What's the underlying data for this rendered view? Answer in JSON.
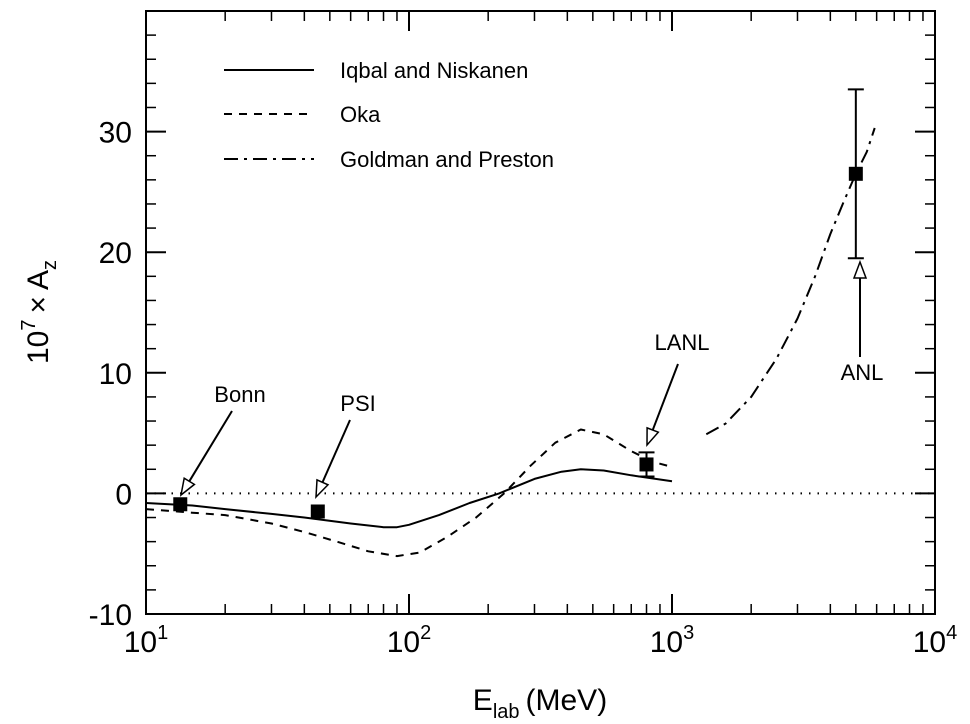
{
  "chart_data": {
    "type": "line",
    "title": "",
    "xscale": "log",
    "xlim": [
      10,
      10000
    ],
    "ylim": [
      -10,
      40
    ],
    "xlabel": {
      "main": "E",
      "sub": "lab",
      "unit": "(MeV)"
    },
    "ylabel": {
      "base": "10",
      "exp": "7",
      "times": "×",
      "var": "A",
      "sub": "z"
    },
    "x_ticks": [
      {
        "value": 10,
        "base": "10",
        "exp": "1"
      },
      {
        "value": 100,
        "base": "10",
        "exp": "2"
      },
      {
        "value": 1000,
        "base": "10",
        "exp": "3"
      },
      {
        "value": 10000,
        "base": "10",
        "exp": "4"
      }
    ],
    "y_ticks": [
      {
        "value": -10,
        "label": "-10"
      },
      {
        "value": 0,
        "label": "0"
      },
      {
        "value": 10,
        "label": "10"
      },
      {
        "value": 20,
        "label": "20"
      },
      {
        "value": 30,
        "label": "30"
      }
    ],
    "zero_line": true,
    "grid": false,
    "legend_position": "top-left",
    "series": [
      {
        "name": "Iqbal and Niskanen",
        "style": "solid",
        "points": [
          [
            10,
            -0.8
          ],
          [
            15,
            -1.0
          ],
          [
            20,
            -1.3
          ],
          [
            30,
            -1.7
          ],
          [
            40,
            -2.0
          ],
          [
            60,
            -2.5
          ],
          [
            80,
            -2.8
          ],
          [
            90,
            -2.8
          ],
          [
            100,
            -2.6
          ],
          [
            130,
            -1.8
          ],
          [
            170,
            -0.8
          ],
          [
            220,
            0.0
          ],
          [
            300,
            1.2
          ],
          [
            380,
            1.8
          ],
          [
            450,
            2.0
          ],
          [
            550,
            1.9
          ],
          [
            700,
            1.5
          ],
          [
            1000,
            1.0
          ]
        ]
      },
      {
        "name": "Oka",
        "style": "dashed",
        "points": [
          [
            10,
            -1.3
          ],
          [
            15,
            -1.6
          ],
          [
            20,
            -1.8
          ],
          [
            30,
            -2.5
          ],
          [
            40,
            -3.2
          ],
          [
            55,
            -4.1
          ],
          [
            70,
            -4.8
          ],
          [
            90,
            -5.2
          ],
          [
            110,
            -4.9
          ],
          [
            140,
            -3.6
          ],
          [
            180,
            -2.0
          ],
          [
            230,
            0.0
          ],
          [
            290,
            2.3
          ],
          [
            360,
            4.2
          ],
          [
            450,
            5.3
          ],
          [
            550,
            4.9
          ],
          [
            700,
            3.5
          ],
          [
            850,
            2.6
          ],
          [
            1000,
            2.2
          ]
        ]
      },
      {
        "name": "Goldman and Preston",
        "style": "dash-dot",
        "points": [
          [
            1350,
            4.9
          ],
          [
            1600,
            5.8
          ],
          [
            2000,
            8.0
          ],
          [
            2500,
            11.2
          ],
          [
            3000,
            14.5
          ],
          [
            3500,
            18.0
          ],
          [
            4000,
            21.5
          ],
          [
            4500,
            24.2
          ],
          [
            5000,
            26.5
          ],
          [
            5500,
            28.3
          ],
          [
            5900,
            30.3
          ]
        ]
      }
    ],
    "measurements": [
      {
        "name": "Bonn",
        "x": 13.5,
        "y": -0.9,
        "err": 0.3
      },
      {
        "name": "PSI",
        "x": 45,
        "y": -1.5,
        "err": 0.3
      },
      {
        "name": "LANL",
        "x": 800,
        "y": 2.4,
        "err": 1.0
      },
      {
        "name": "ANL",
        "x": 5000,
        "y": 26.5,
        "err": 7.0
      }
    ]
  }
}
